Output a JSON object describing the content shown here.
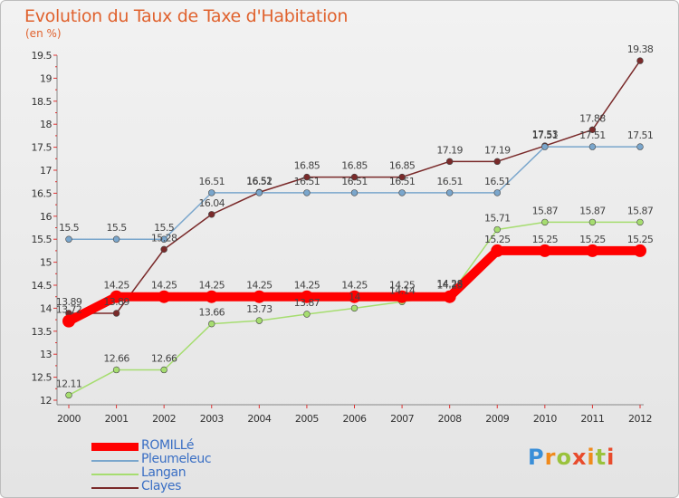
{
  "title": "Evolution du Taux de Taxe d'Habitation",
  "unit": "(en %)",
  "logo": "Proxiti",
  "chart_data": {
    "type": "line",
    "x": [
      2000,
      2001,
      2002,
      2003,
      2004,
      2005,
      2006,
      2007,
      2008,
      2009,
      2010,
      2011,
      2012
    ],
    "ylim": [
      12,
      19.5
    ],
    "yticks": [
      12,
      12.5,
      13,
      13.5,
      14,
      14.5,
      15,
      15.5,
      16,
      16.5,
      17,
      17.5,
      18,
      18.5,
      19,
      19.5
    ],
    "grid": false,
    "legend_position": "bottom-left",
    "series": [
      {
        "name": "ROMILLé",
        "color": "#ff0000",
        "values": [
          13.72,
          14.25,
          14.25,
          14.25,
          14.25,
          14.25,
          14.25,
          14.25,
          14.25,
          15.25,
          15.25,
          15.25,
          15.25
        ]
      },
      {
        "name": "Pleumeleuc",
        "color": "#7aa6cc",
        "values": [
          15.5,
          15.5,
          15.5,
          16.51,
          16.51,
          16.51,
          16.51,
          16.51,
          16.51,
          16.51,
          17.51,
          17.51,
          17.51
        ]
      },
      {
        "name": "Langan",
        "color": "#a6dd70",
        "values": [
          12.11,
          12.66,
          12.66,
          13.66,
          13.73,
          13.87,
          14,
          14.14,
          14.28,
          15.71,
          15.87,
          15.87,
          15.87
        ]
      },
      {
        "name": "Clayes",
        "color": "#7a2a2a",
        "values": [
          13.89,
          13.89,
          15.28,
          16.04,
          16.52,
          16.85,
          16.85,
          16.85,
          17.19,
          17.19,
          17.53,
          17.88,
          19.38
        ]
      }
    ]
  }
}
